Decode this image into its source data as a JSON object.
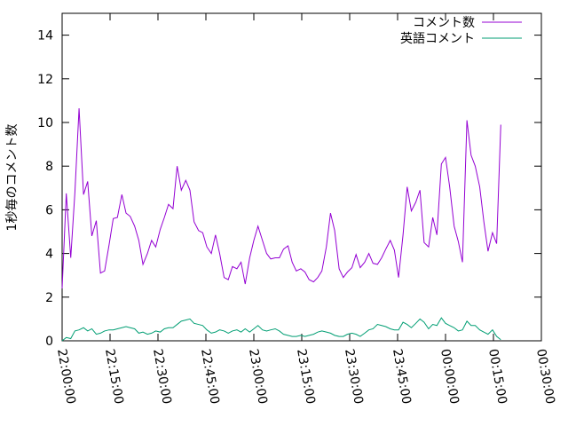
{
  "chart_data": {
    "type": "line",
    "y_label": "1秒毎のコメント数",
    "x": [
      0,
      1.3,
      2.7,
      4,
      5.3,
      6.7,
      8,
      9.3,
      10.7,
      12,
      13.3,
      14.7,
      16,
      17.3,
      18.7,
      20,
      21.3,
      22.7,
      24,
      25.3,
      26.7,
      28,
      29.3,
      30.7,
      32,
      33.3,
      34.7,
      36,
      37.3,
      38.7,
      40,
      41.3,
      42.7,
      44,
      45.3,
      46.7,
      48,
      49.3,
      50.7,
      52,
      53.3,
      54.7,
      56,
      57.3,
      58.7,
      60,
      61.3,
      62.7,
      64,
      65.3,
      66.7,
      68,
      69.3,
      70.7,
      72,
      73.3,
      74.7,
      76,
      77.3,
      78.7,
      80,
      81.3,
      82.7,
      84,
      85.3,
      86.7,
      88,
      89.3,
      90.7,
      92,
      93.3,
      94.7,
      96,
      97.3,
      98.7,
      100,
      101.3,
      102.7,
      104,
      105.3,
      106.7,
      108,
      109.3,
      110.7,
      112,
      113.3,
      114.7,
      116,
      117.3,
      118.7,
      120,
      121.3,
      122.7,
      124,
      125.3,
      126.7,
      128,
      129.3,
      130.7,
      132,
      133.3,
      134.7,
      136,
      137.3
    ],
    "series": [
      {
        "name": "コメント数",
        "color": "#9400d3",
        "values": [
          2.4,
          6.75,
          3.8,
          6.8,
          10.65,
          6.7,
          7.3,
          4.8,
          5.5,
          3.1,
          3.2,
          4.4,
          5.6,
          5.65,
          6.7,
          5.85,
          5.7,
          5.25,
          4.6,
          3.5,
          4.0,
          4.6,
          4.3,
          5.1,
          5.65,
          6.25,
          6.05,
          8.0,
          6.9,
          7.35,
          6.9,
          5.45,
          5.05,
          4.95,
          4.3,
          4.0,
          4.85,
          4.0,
          2.9,
          2.8,
          3.4,
          3.3,
          3.6,
          2.6,
          3.8,
          4.6,
          5.25,
          4.6,
          4.0,
          3.75,
          3.8,
          3.8,
          4.2,
          4.35,
          3.6,
          3.2,
          3.3,
          3.15,
          2.8,
          2.7,
          2.9,
          3.2,
          4.3,
          5.85,
          5.05,
          3.3,
          2.9,
          3.15,
          3.35,
          3.95,
          3.35,
          3.6,
          4.0,
          3.55,
          3.5,
          3.8,
          4.2,
          4.6,
          4.15,
          2.9,
          4.85,
          7.05,
          5.95,
          6.35,
          6.9,
          4.5,
          4.3,
          5.65,
          4.85,
          8.1,
          8.4,
          7.05,
          5.25,
          4.55,
          3.6,
          10.1,
          8.5,
          8.0,
          7.05,
          5.45,
          4.1,
          4.95,
          4.45,
          9.9
        ]
      },
      {
        "name": "英語コメント",
        "color": "#009e73",
        "values": [
          0,
          0.15,
          0.1,
          0.45,
          0.5,
          0.6,
          0.45,
          0.55,
          0.3,
          0.35,
          0.45,
          0.5,
          0.5,
          0.55,
          0.6,
          0.65,
          0.6,
          0.55,
          0.35,
          0.4,
          0.3,
          0.35,
          0.45,
          0.4,
          0.55,
          0.6,
          0.6,
          0.75,
          0.9,
          0.95,
          1.0,
          0.8,
          0.75,
          0.7,
          0.5,
          0.35,
          0.4,
          0.5,
          0.45,
          0.35,
          0.45,
          0.5,
          0.4,
          0.55,
          0.4,
          0.55,
          0.7,
          0.5,
          0.45,
          0.5,
          0.55,
          0.45,
          0.3,
          0.25,
          0.2,
          0.2,
          0.25,
          0.2,
          0.25,
          0.3,
          0.4,
          0.45,
          0.4,
          0.35,
          0.25,
          0.2,
          0.2,
          0.3,
          0.35,
          0.3,
          0.2,
          0.35,
          0.5,
          0.55,
          0.75,
          0.7,
          0.65,
          0.55,
          0.5,
          0.5,
          0.85,
          0.75,
          0.6,
          0.8,
          1.0,
          0.85,
          0.55,
          0.75,
          0.7,
          1.05,
          0.8,
          0.7,
          0.6,
          0.45,
          0.5,
          0.9,
          0.7,
          0.7,
          0.5,
          0.4,
          0.3,
          0.5,
          0.2,
          0.05
        ]
      }
    ],
    "xlim": [
      0,
      150
    ],
    "xticks": [
      {
        "value": 0,
        "label": "22:00:00"
      },
      {
        "value": 15,
        "label": "22:15:00"
      },
      {
        "value": 30,
        "label": "22:30:00"
      },
      {
        "value": 45,
        "label": "22:45:00"
      },
      {
        "value": 60,
        "label": "23:00:00"
      },
      {
        "value": 75,
        "label": "23:15:00"
      },
      {
        "value": 90,
        "label": "23:30:00"
      },
      {
        "value": 105,
        "label": "23:45:00"
      },
      {
        "value": 120,
        "label": "00:00:00"
      },
      {
        "value": 135,
        "label": "00:15:00"
      },
      {
        "value": 150,
        "label": "00:30:00"
      }
    ],
    "ylim": [
      0,
      15
    ],
    "yticks": [
      0,
      2,
      4,
      6,
      8,
      10,
      12,
      14
    ],
    "legend": "top-right"
  }
}
